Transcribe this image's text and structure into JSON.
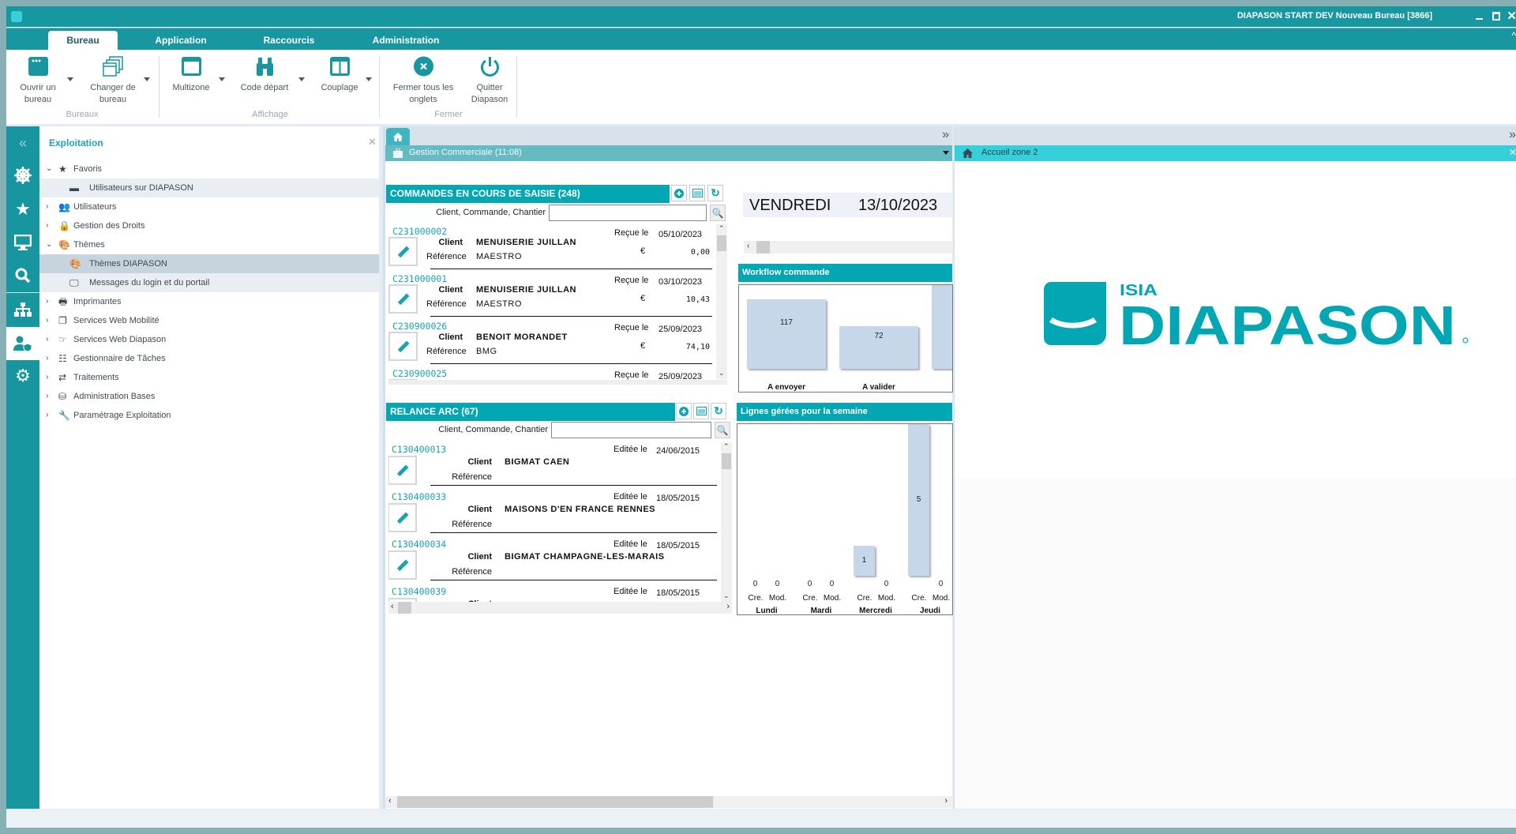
{
  "window": {
    "title": "DIAPASON START DEV Nouveau Bureau [3866]"
  },
  "ribbon": {
    "tabs": [
      {
        "label": "Bureau",
        "active": true
      },
      {
        "label": "Application"
      },
      {
        "label": "Raccourcis"
      },
      {
        "label": "Administration"
      }
    ],
    "buttons": {
      "ouvrir": "Ouvrir un\nbureau",
      "changer": "Changer de\nbureau",
      "multizone": "Multizone",
      "code_depart": "Code départ",
      "couplage": "Couplage",
      "fermer": "Fermer tous les\nonglets",
      "quitter": "Quitter\nDiapason"
    },
    "groups": {
      "bureaux": "Bureaux",
      "affichage": "Affichage",
      "fermer": "Fermer"
    }
  },
  "tree": {
    "title": "Exploitation",
    "items": [
      {
        "label": "Favoris",
        "expanded": true,
        "level": 0,
        "icon": "star-icon"
      },
      {
        "label": "Utilisateurs sur DIAPASON",
        "level": 1,
        "icon": "app-icon"
      },
      {
        "label": "Utilisateurs",
        "level": 0,
        "icon": "users-icon"
      },
      {
        "label": "Gestion des Droits",
        "level": 0,
        "icon": "lock-icon"
      },
      {
        "label": "Thèmes",
        "expanded": true,
        "level": 0,
        "icon": "palette-icon"
      },
      {
        "label": "Thèmes DIAPASON",
        "level": 1,
        "icon": "palette-icon",
        "selected": true
      },
      {
        "label": "Messages du login et du portail",
        "level": 1,
        "icon": "monitor-icon"
      },
      {
        "label": "Imprimantes",
        "level": 0,
        "icon": "printer-icon"
      },
      {
        "label": "Services Web Mobilité",
        "level": 0,
        "icon": "copy-icon"
      },
      {
        "label": "Services Web Diapason",
        "level": 0,
        "icon": "hand-pointer-icon"
      },
      {
        "label": "Gestionnaire de Tâches",
        "level": 0,
        "icon": "tasks-icon"
      },
      {
        "label": "Traitements",
        "level": 0,
        "icon": "sync-icon"
      },
      {
        "label": "Administration  Bases",
        "level": 0,
        "icon": "database-icon"
      },
      {
        "label": "Paramétrage Exploitation",
        "level": 0,
        "icon": "wrench-icon"
      }
    ]
  },
  "zone1": {
    "tab_title": "Gestion Commerciale (11:08)",
    "date_day": "VENDREDI",
    "date_value": "13/10/2023",
    "commandes": {
      "title": "COMMANDES EN COURS  DE SAISIE (248)",
      "search_label": "Client, Commande, Chantier",
      "search_value": "",
      "client_label": "Client",
      "ref_label": "Référence",
      "date_label": "Reçue le",
      "currency": "€",
      "rows": [
        {
          "id": "C231000002",
          "client": "MENUISERIE JUILLAN",
          "ref": "MAESTRO",
          "date": "05/10/2023",
          "amount": "0,00"
        },
        {
          "id": "C231000001",
          "client": "MENUISERIE JUILLAN",
          "ref": "MAESTRO",
          "date": "03/10/2023",
          "amount": "10,43"
        },
        {
          "id": "C230900026",
          "client": "BENOIT MORANDET",
          "ref": "BMG",
          "date": "25/09/2023",
          "amount": "74,10"
        },
        {
          "id": "C230900025",
          "client": "",
          "ref": "",
          "date": "25/09/2023",
          "amount": ""
        }
      ]
    },
    "relance": {
      "title": "RELANCE ARC (67)",
      "search_label": "Client, Commande, Chantier",
      "search_value": "",
      "client_label": "Client",
      "ref_label": "Référence",
      "date_label": "Editée le",
      "rows": [
        {
          "id": "C130400013",
          "client": "BIGMAT CAEN",
          "date": "24/06/2015"
        },
        {
          "id": "C130400033",
          "client": "MAISONS D'EN FRANCE RENNES",
          "date": "18/05/2015"
        },
        {
          "id": "C130400034",
          "client": "BIGMAT CHAMPAGNE-LES-MARAIS",
          "date": "18/05/2015"
        },
        {
          "id": "C130400039",
          "client": "",
          "date": "18/05/2015"
        }
      ]
    },
    "workflow_title": "Workflow commande",
    "lignes_title": "Lignes gérées pour la semaine"
  },
  "zone2": {
    "tab_title": "Accueil zone 2",
    "logo_text": "ISIA DIAPASON"
  },
  "chart_data": [
    {
      "type": "bar",
      "title": "Workflow commande",
      "categories": [
        "A envoyer",
        "A valider"
      ],
      "values": [
        117,
        72
      ]
    },
    {
      "type": "bar",
      "title": "Lignes gérées pour la semaine",
      "categories": [
        "Lundi",
        "Mardi",
        "Mercredi",
        "Jeudi"
      ],
      "subcategories": [
        "Cre.",
        "Mod."
      ],
      "series": [
        {
          "name": "Cre.",
          "values": [
            0,
            0,
            1,
            5
          ]
        },
        {
          "name": "Mod.",
          "values": [
            0,
            0,
            0,
            0
          ]
        }
      ]
    }
  ],
  "colors": {
    "brand": "#17979f",
    "header": "#03a7b4",
    "accent_light": "#36cfdc",
    "link": "#1aa3b0",
    "bar": "#c6d7e9"
  }
}
